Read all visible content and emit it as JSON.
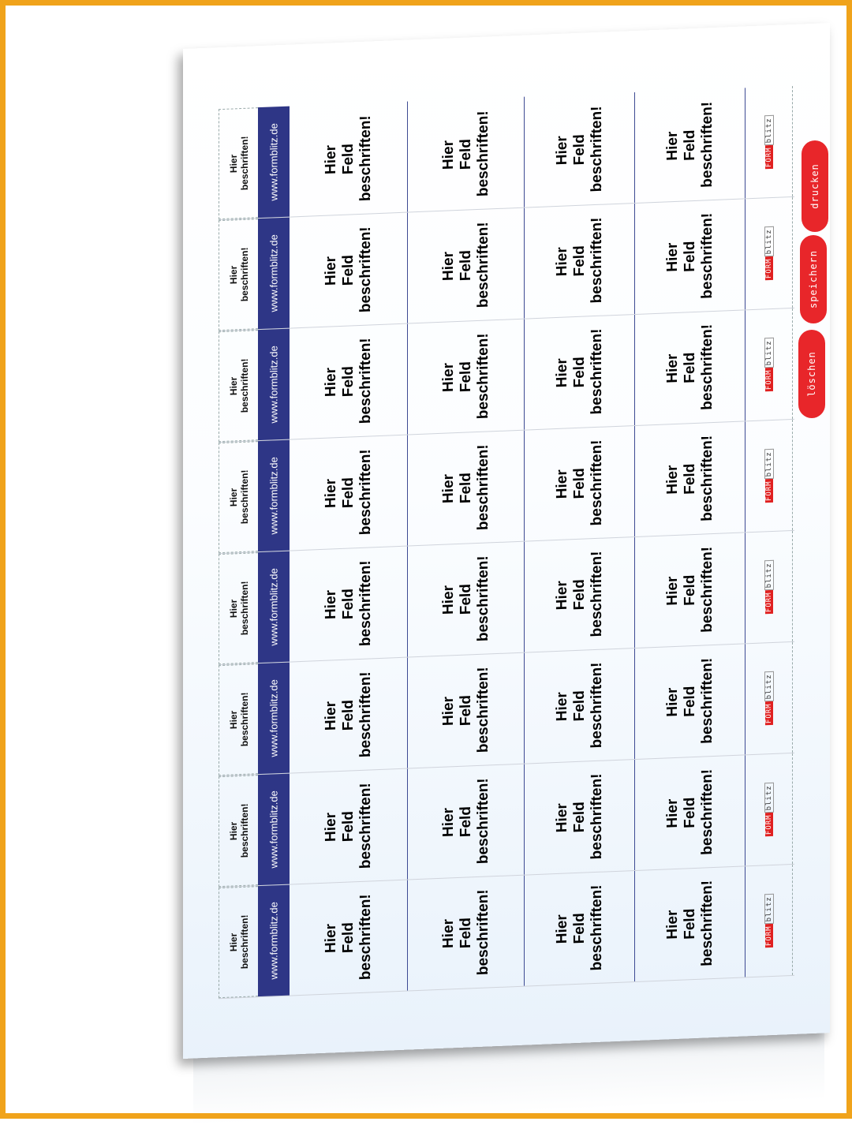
{
  "frame_color": "#f0a31b",
  "accent": "#2e3686",
  "button_color": "#e8262a",
  "rows": [
    {
      "small": "Hier beschriften!",
      "url": "www.formblitz.de",
      "fields": [
        "Hier Feld beschriften!",
        "Hier Feld beschriften!",
        "Hier Feld beschriften!",
        "Hier Feld beschriften!"
      ],
      "logo": {
        "red": "FORM",
        "grey": "blitz"
      }
    },
    {
      "small": "Hier beschriften!",
      "url": "www.formblitz.de",
      "fields": [
        "Hier Feld beschriften!",
        "Hier Feld beschriften!",
        "Hier Feld beschriften!",
        "Hier Feld beschriften!"
      ],
      "logo": {
        "red": "FORM",
        "grey": "blitz"
      }
    },
    {
      "small": "Hier beschriften!",
      "url": "www.formblitz.de",
      "fields": [
        "Hier Feld beschriften!",
        "Hier Feld beschriften!",
        "Hier Feld beschriften!",
        "Hier Feld beschriften!"
      ],
      "logo": {
        "red": "FORM",
        "grey": "blitz"
      }
    },
    {
      "small": "Hier beschriften!",
      "url": "www.formblitz.de",
      "fields": [
        "Hier Feld beschriften!",
        "Hier Feld beschriften!",
        "Hier Feld beschriften!",
        "Hier Feld beschriften!"
      ],
      "logo": {
        "red": "FORM",
        "grey": "blitz"
      }
    },
    {
      "small": "Hier beschriften!",
      "url": "www.formblitz.de",
      "fields": [
        "Hier Feld beschriften!",
        "Hier Feld beschriften!",
        "Hier Feld beschriften!",
        "Hier Feld beschriften!"
      ],
      "logo": {
        "red": "FORM",
        "grey": "blitz"
      }
    },
    {
      "small": "Hier beschriften!",
      "url": "www.formblitz.de",
      "fields": [
        "Hier Feld beschriften!",
        "Hier Feld beschriften!",
        "Hier Feld beschriften!",
        "Hier Feld beschriften!"
      ],
      "logo": {
        "red": "FORM",
        "grey": "blitz"
      }
    },
    {
      "small": "Hier beschriften!",
      "url": "www.formblitz.de",
      "fields": [
        "Hier Feld beschriften!",
        "Hier Feld beschriften!",
        "Hier Feld beschriften!",
        "Hier Feld beschriften!"
      ],
      "logo": {
        "red": "FORM",
        "grey": "blitz"
      }
    },
    {
      "small": "Hier beschriften!",
      "url": "www.formblitz.de",
      "fields": [
        "Hier Feld beschriften!",
        "Hier Feld beschriften!",
        "Hier Feld beschriften!",
        "Hier Feld beschriften!"
      ],
      "logo": {
        "red": "FORM",
        "grey": "blitz"
      }
    }
  ],
  "buttons": {
    "print": "drucken",
    "save": "speichern",
    "clear": "löschen"
  }
}
